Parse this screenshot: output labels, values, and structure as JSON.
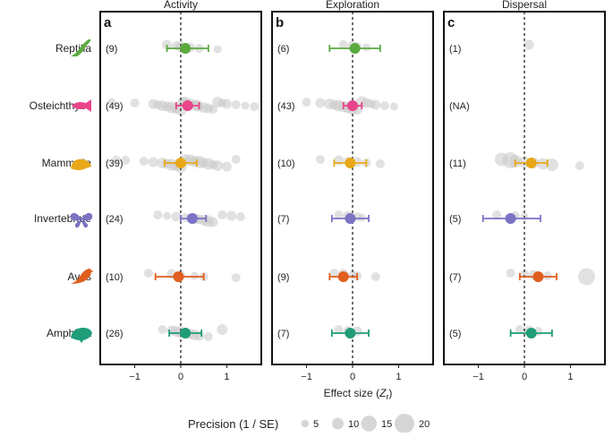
{
  "chart_data": {
    "type": "scatter",
    "subtype": "forest-plot",
    "x_axis_label": "Effect size (",
    "x_axis_label_symbol": "Z",
    "x_axis_label_subscript": "r",
    "x_axis_label_close": ")",
    "x_ticks": [
      "−1",
      "0",
      "1"
    ],
    "xlim": [
      -1.75,
      1.75
    ],
    "reference_line_x": 0,
    "taxa": [
      {
        "name": "Reptilia",
        "color": "#5aaa3f",
        "icon": "lizard-icon"
      },
      {
        "name": "Osteichthyes",
        "color": "#e8458b",
        "icon": "fish-icon"
      },
      {
        "name": "Mammalia",
        "color": "#e8a818",
        "icon": "mouse-icon"
      },
      {
        "name": "Invertebrate",
        "color": "#7b73c4",
        "icon": "butterfly-icon"
      },
      {
        "name": "Aves",
        "color": "#e05e1e",
        "icon": "bird-icon"
      },
      {
        "name": "Amphibia",
        "color": "#1f9c78",
        "icon": "frog-icon"
      }
    ],
    "panels": [
      {
        "letter": "a",
        "title": "Activity",
        "rows": [
          {
            "n_label": "(9)",
            "estimate": 0.1,
            "ci": [
              -0.3,
              0.6
            ],
            "studies": [
              [
                -0.3,
                7
              ],
              [
                -0.1,
                6
              ],
              [
                0.0,
                8
              ],
              [
                0.2,
                7
              ],
              [
                0.4,
                6
              ],
              [
                0.8,
                5
              ]
            ]
          },
          {
            "n_label": "(49)",
            "estimate": 0.15,
            "ci": [
              -0.1,
              0.4
            ],
            "studies": [
              [
                -1.5,
                5
              ],
              [
                -1.0,
                6
              ],
              [
                -0.6,
                7
              ],
              [
                -0.5,
                6
              ],
              [
                -0.4,
                8
              ],
              [
                -0.3,
                7
              ],
              [
                -0.2,
                9
              ],
              [
                -0.1,
                8
              ],
              [
                0.0,
                10
              ],
              [
                0.05,
                8
              ],
              [
                0.1,
                9
              ],
              [
                0.2,
                8
              ],
              [
                0.3,
                7
              ],
              [
                0.35,
                9
              ],
              [
                0.4,
                6
              ],
              [
                0.5,
                8
              ],
              [
                0.6,
                7
              ],
              [
                0.7,
                6
              ],
              [
                0.8,
                8
              ],
              [
                0.9,
                6
              ],
              [
                1.0,
                7
              ],
              [
                1.2,
                6
              ],
              [
                1.4,
                5
              ],
              [
                1.6,
                6
              ]
            ]
          },
          {
            "n_label": "(39)",
            "estimate": 0.0,
            "ci": [
              -0.35,
              0.35
            ],
            "studies": [
              [
                -1.4,
                5
              ],
              [
                -1.2,
                6
              ],
              [
                -0.8,
                6
              ],
              [
                -0.6,
                7
              ],
              [
                -0.4,
                8
              ],
              [
                -0.3,
                7
              ],
              [
                -0.2,
                9
              ],
              [
                -0.1,
                8
              ],
              [
                0.0,
                10
              ],
              [
                0.1,
                8
              ],
              [
                0.2,
                9
              ],
              [
                0.3,
                8
              ],
              [
                0.4,
                10
              ],
              [
                0.5,
                7
              ],
              [
                0.6,
                9
              ],
              [
                0.7,
                6
              ],
              [
                0.8,
                8
              ],
              [
                1.0,
                7
              ],
              [
                1.2,
                6
              ]
            ]
          },
          {
            "n_label": "(24)",
            "estimate": 0.25,
            "ci": [
              0.0,
              0.55
            ],
            "studies": [
              [
                -0.5,
                6
              ],
              [
                -0.3,
                5
              ],
              [
                -0.1,
                7
              ],
              [
                0.1,
                6
              ],
              [
                0.3,
                8
              ],
              [
                0.4,
                7
              ],
              [
                0.5,
                8
              ],
              [
                0.6,
                9
              ],
              [
                0.7,
                7
              ],
              [
                0.9,
                6
              ],
              [
                1.1,
                7
              ],
              [
                1.3,
                6
              ]
            ]
          },
          {
            "n_label": "(10)",
            "estimate": -0.05,
            "ci": [
              -0.55,
              0.5
            ],
            "studies": [
              [
                -0.7,
                6
              ],
              [
                -0.2,
                7
              ],
              [
                0.0,
                6
              ],
              [
                0.3,
                5
              ],
              [
                0.5,
                6
              ],
              [
                1.2,
                6
              ]
            ]
          },
          {
            "n_label": "(26)",
            "estimate": 0.1,
            "ci": [
              -0.25,
              0.45
            ],
            "studies": [
              [
                -0.4,
                6
              ],
              [
                -0.2,
                7
              ],
              [
                -0.1,
                8
              ],
              [
                0.0,
                9
              ],
              [
                0.1,
                8
              ],
              [
                0.2,
                7
              ],
              [
                0.3,
                8
              ],
              [
                0.4,
                7
              ],
              [
                0.6,
                6
              ],
              [
                0.9,
                8
              ]
            ]
          }
        ]
      },
      {
        "letter": "b",
        "title": "Exploration",
        "rows": [
          {
            "n_label": "(6)",
            "estimate": 0.05,
            "ci": [
              -0.5,
              0.6
            ],
            "studies": [
              [
                -0.2,
                6
              ],
              [
                0.0,
                7
              ],
              [
                0.1,
                6
              ],
              [
                0.3,
                5
              ]
            ]
          },
          {
            "n_label": "(43)",
            "estimate": 0.0,
            "ci": [
              -0.2,
              0.2
            ],
            "studies": [
              [
                -1.0,
                6
              ],
              [
                -0.7,
                7
              ],
              [
                -0.5,
                8
              ],
              [
                -0.4,
                7
              ],
              [
                -0.3,
                9
              ],
              [
                -0.2,
                8
              ],
              [
                -0.1,
                9
              ],
              [
                0.0,
                10
              ],
              [
                0.1,
                8
              ],
              [
                0.2,
                9
              ],
              [
                0.3,
                7
              ],
              [
                0.4,
                6
              ],
              [
                0.5,
                7
              ],
              [
                0.7,
                6
              ],
              [
                0.9,
                5
              ]
            ]
          },
          {
            "n_label": "(10)",
            "estimate": -0.05,
            "ci": [
              -0.4,
              0.3
            ],
            "studies": [
              [
                -0.7,
                6
              ],
              [
                -0.3,
                7
              ],
              [
                -0.1,
                6
              ],
              [
                0.1,
                7
              ],
              [
                0.3,
                6
              ],
              [
                0.6,
                6
              ]
            ]
          },
          {
            "n_label": "(7)",
            "estimate": -0.05,
            "ci": [
              -0.45,
              0.35
            ],
            "studies": [
              [
                -0.3,
                6
              ],
              [
                -0.1,
                7
              ],
              [
                0.1,
                6
              ],
              [
                0.2,
                5
              ]
            ]
          },
          {
            "n_label": "(9)",
            "estimate": -0.2,
            "ci": [
              -0.5,
              0.1
            ],
            "studies": [
              [
                -0.4,
                6
              ],
              [
                -0.2,
                7
              ],
              [
                0.0,
                6
              ],
              [
                0.1,
                6
              ],
              [
                0.5,
                6
              ]
            ]
          },
          {
            "n_label": "(7)",
            "estimate": -0.05,
            "ci": [
              -0.45,
              0.35
            ],
            "studies": [
              [
                -0.3,
                6
              ],
              [
                -0.1,
                6
              ],
              [
                0.1,
                7
              ]
            ]
          }
        ]
      },
      {
        "letter": "c",
        "title": "Dispersal",
        "rows": [
          {
            "n_label": "(1)",
            "estimate": null,
            "ci": null,
            "studies": [
              [
                0.1,
                7
              ]
            ]
          },
          {
            "n_label": "(NA)",
            "estimate": null,
            "ci": null,
            "studies": []
          },
          {
            "n_label": "(11)",
            "estimate": 0.15,
            "ci": [
              -0.2,
              0.5
            ],
            "studies": [
              [
                -0.5,
                11
              ],
              [
                -0.3,
                14
              ],
              [
                -0.2,
                10
              ],
              [
                0.0,
                9
              ],
              [
                0.2,
                8
              ],
              [
                0.4,
                9
              ],
              [
                0.6,
                10
              ],
              [
                1.2,
                6
              ]
            ]
          },
          {
            "n_label": "(5)",
            "estimate": -0.3,
            "ci": [
              -0.9,
              0.35
            ],
            "studies": [
              [
                -0.6,
                6
              ],
              [
                -0.2,
                6
              ],
              [
                0.0,
                5
              ]
            ]
          },
          {
            "n_label": "(7)",
            "estimate": 0.3,
            "ci": [
              -0.1,
              0.7
            ],
            "studies": [
              [
                -0.3,
                6
              ],
              [
                0.0,
                6
              ],
              [
                0.2,
                7
              ],
              [
                0.5,
                6
              ],
              [
                1.35,
                15
              ]
            ]
          },
          {
            "n_label": "(5)",
            "estimate": 0.15,
            "ci": [
              -0.3,
              0.6
            ],
            "studies": [
              [
                -0.1,
                6
              ],
              [
                0.1,
                7
              ],
              [
                0.3,
                6
              ]
            ]
          }
        ]
      }
    ],
    "legend": {
      "title": "Precision (1 / SE)",
      "position": "bottom",
      "entries": [
        {
          "label": "5",
          "value": 5
        },
        {
          "label": "10",
          "value": 10
        },
        {
          "label": "15",
          "value": 15
        },
        {
          "label": "20",
          "value": 20
        }
      ]
    }
  }
}
